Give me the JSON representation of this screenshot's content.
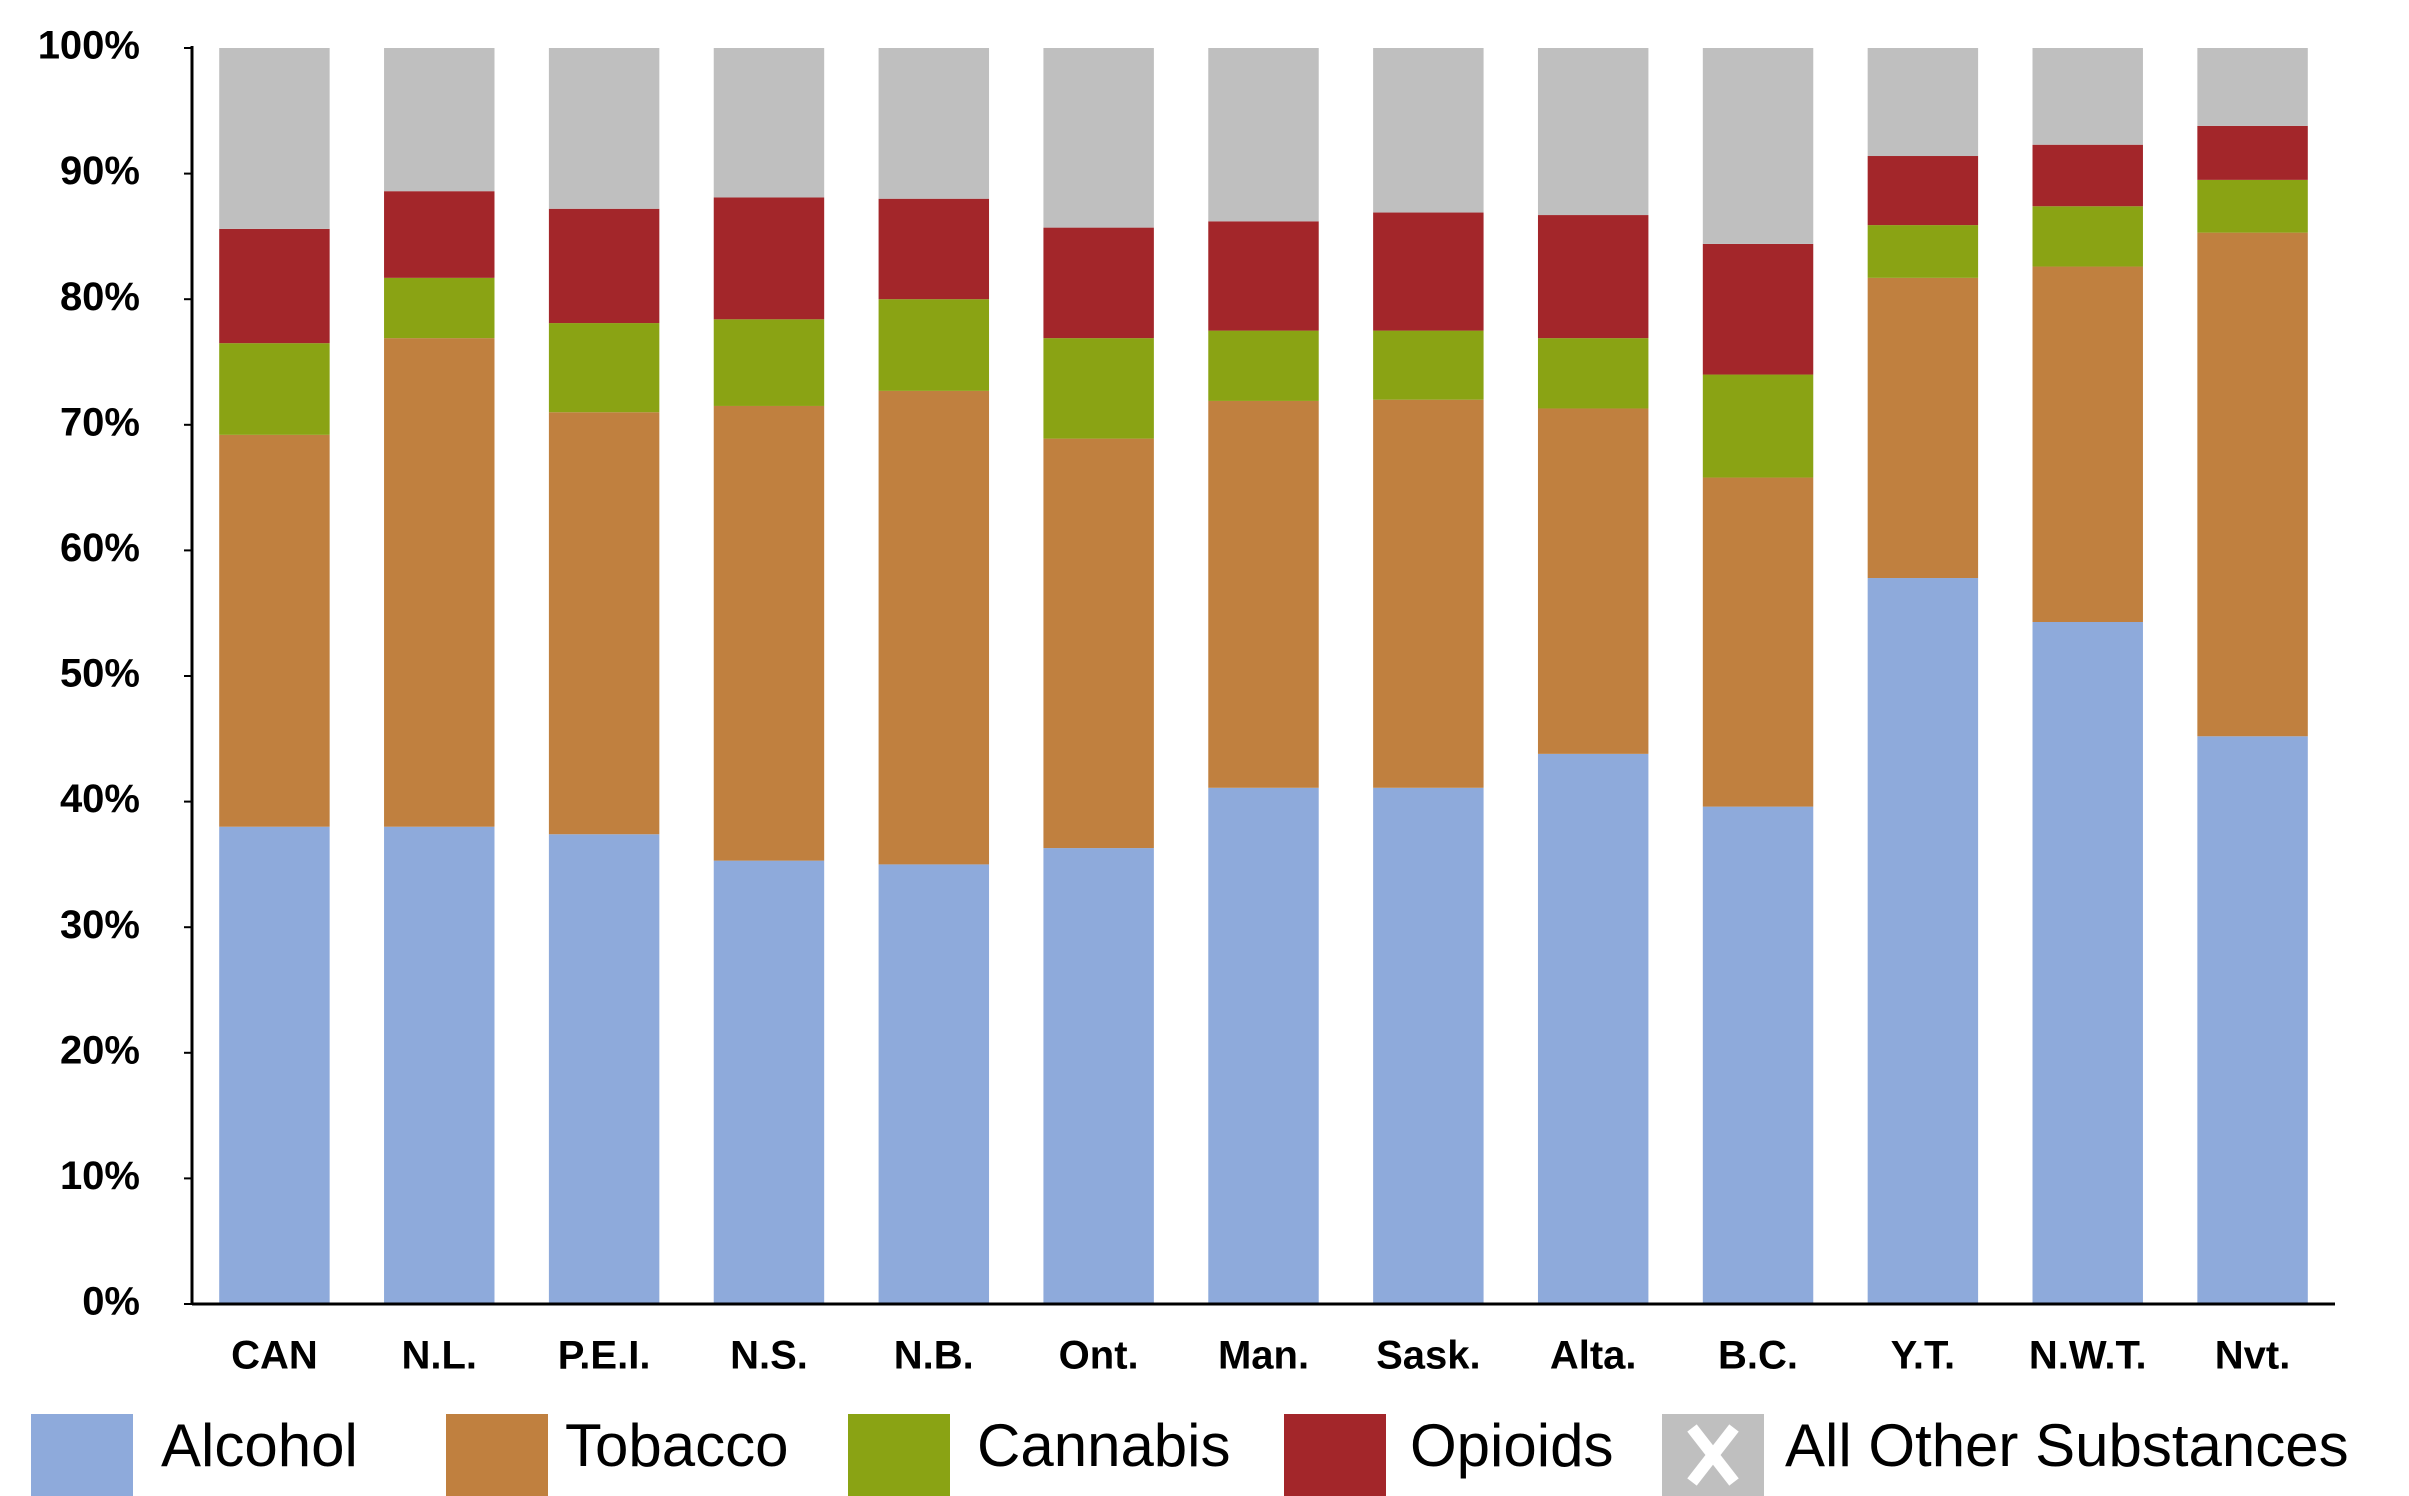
{
  "chart_data": {
    "type": "stacked_bar",
    "categories": [
      "CAN",
      "N.L.",
      "P.E.I.",
      "N.S.",
      "N.B.",
      "Ont.",
      "Man.",
      "Sask.",
      "Alta.",
      "B.C.",
      "Y.T.",
      "N.W.T.",
      "Nvt."
    ],
    "series": [
      {
        "name": "Alcohol",
        "color": "#8eaadb",
        "values": [
          38.0,
          38.0,
          37.4,
          35.3,
          35.0,
          36.3,
          41.1,
          41.1,
          43.8,
          39.6,
          57.8,
          54.3,
          45.2
        ]
      },
      {
        "name": "Tobacco",
        "color": "#c0803f",
        "values": [
          31.2,
          38.9,
          33.6,
          36.2,
          37.7,
          32.6,
          30.8,
          30.9,
          27.5,
          26.2,
          23.9,
          28.3,
          40.1
        ]
      },
      {
        "name": "Cannabis",
        "color": "#8aa314",
        "values": [
          7.3,
          4.8,
          7.1,
          6.9,
          7.3,
          8.0,
          5.6,
          5.5,
          5.6,
          8.2,
          4.2,
          4.8,
          4.2
        ]
      },
      {
        "name": "Opioids",
        "color": "#a3262a",
        "values": [
          9.1,
          6.9,
          9.1,
          9.7,
          8.0,
          8.8,
          8.7,
          9.4,
          9.8,
          10.4,
          5.5,
          4.9,
          4.3
        ]
      },
      {
        "name": "All Other Substances",
        "color": "#bfbfbf",
        "values": [
          14.4,
          11.4,
          12.8,
          11.9,
          12.0,
          14.3,
          13.8,
          13.1,
          13.3,
          15.6,
          8.6,
          7.7,
          6.2
        ]
      }
    ],
    "ylim": [
      0,
      100
    ],
    "yticks": [
      {
        "value": 0,
        "label": "0%"
      },
      {
        "value": 10,
        "label": "10%"
      },
      {
        "value": 20,
        "label": "20%"
      },
      {
        "value": 30,
        "label": "30%"
      },
      {
        "value": 40,
        "label": "40%"
      },
      {
        "value": 50,
        "label": "50%"
      },
      {
        "value": 60,
        "label": "60%"
      },
      {
        "value": 70,
        "label": "70%"
      },
      {
        "value": 80,
        "label": "80%"
      },
      {
        "value": 90,
        "label": "90%"
      },
      {
        "value": 100,
        "label": "100%"
      }
    ],
    "grid": false
  }
}
